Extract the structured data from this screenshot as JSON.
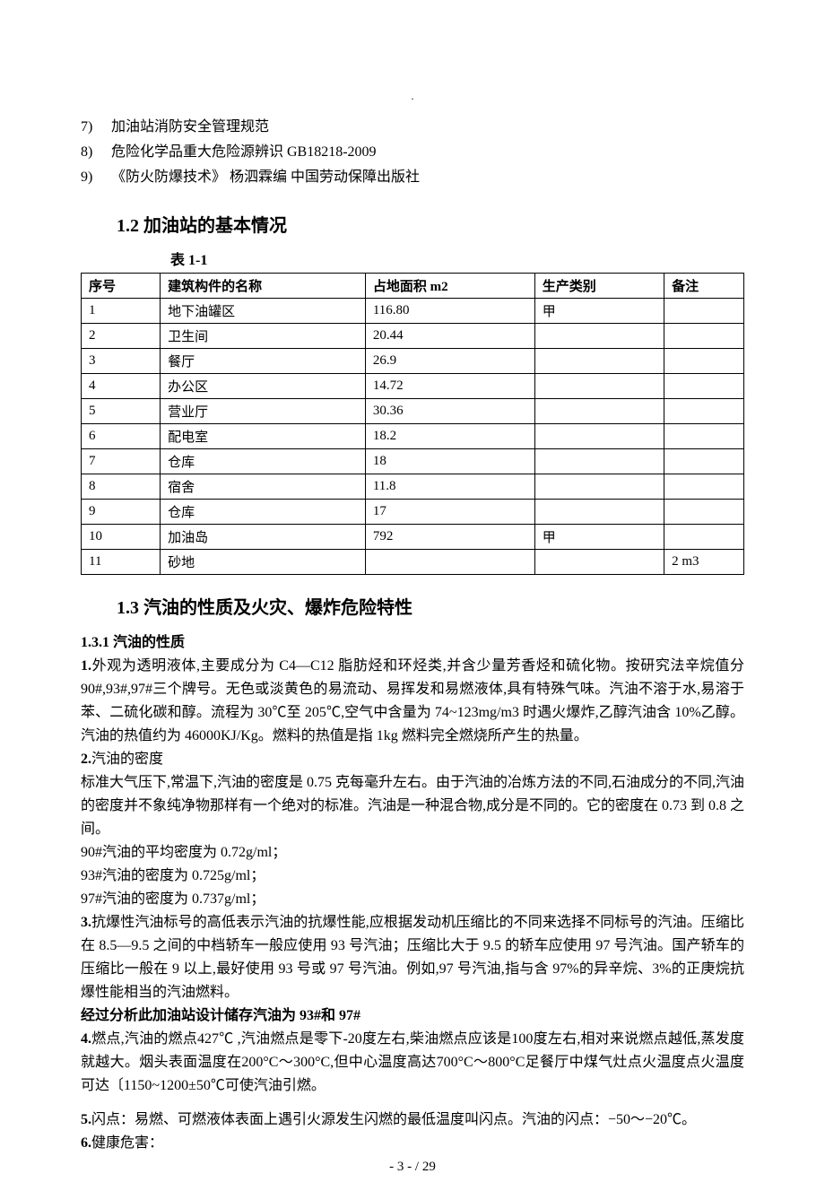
{
  "list": {
    "items": [
      {
        "num": "7)",
        "text": "加油站消防安全管理规范"
      },
      {
        "num": "8)",
        "text": "危险化学品重大危险源辨识 GB18218-2009"
      },
      {
        "num": "9)",
        "text": "《防火防爆技术》 杨泗霖编 中国劳动保障出版社"
      }
    ]
  },
  "heading_1_2": "1.2  加油站的基本情况",
  "table": {
    "label": "表 1-1",
    "columns": [
      "序号",
      "建筑构件的名称",
      "占地面积 m2",
      "生产类别",
      "备注"
    ],
    "rows": [
      [
        "1",
        "地下油罐区",
        "116.80",
        "甲",
        ""
      ],
      [
        "2",
        "卫生间",
        "20.44",
        "",
        ""
      ],
      [
        "3",
        "餐厅",
        "26.9",
        "",
        ""
      ],
      [
        "4",
        "办公区",
        "14.72",
        "",
        ""
      ],
      [
        "5",
        "营业厅",
        "30.36",
        "",
        ""
      ],
      [
        "6",
        "配电室",
        "18.2",
        "",
        ""
      ],
      [
        "7",
        "仓库",
        "18",
        "",
        ""
      ],
      [
        "8",
        "宿舍",
        "11.8",
        "",
        ""
      ],
      [
        "9",
        "仓库",
        "17",
        "",
        ""
      ],
      [
        "10",
        "加油岛",
        "792",
        "甲",
        ""
      ],
      [
        "11",
        "砂地",
        "",
        "",
        "2 m3"
      ]
    ]
  },
  "heading_1_3": "1.3  汽油的性质及火灾、爆炸危险特性",
  "sub_1_3_1": "1.3.1 汽油的性质",
  "paragraphs": {
    "p1_lead": "1.",
    "p1": "外观为透明液体,主要成分为 C4—C12 脂肪烃和环烃类,并含少量芳香烃和硫化物。按研究法辛烷值分 90#,93#,97#三个牌号。无色或淡黄色的易流动、易挥发和易燃液体,具有特殊气味。汽油不溶于水,易溶于苯、二硫化碳和醇。流程为 30℃至 205℃,空气中含量为 74~123mg/m3 时遇火爆炸,乙醇汽油含 10%乙醇。汽油的热值约为 46000KJ/Kg。燃料的热值是指 1kg 燃料完全燃烧所产生的热量。",
    "p2_lead": "2.",
    "p2_title": "汽油的密度",
    "p2": "标准大气压下,常温下,汽油的密度是 0.75 克每毫升左右。由于汽油的冶炼方法的不同,石油成分的不同,汽油的密度并不象纯净物那样有一个绝对的标准。汽油是一种混合物,成分是不同的。它的密度在 0.73 到 0.8 之间。",
    "p2_line1": "90#汽油的平均密度为 0.72g/ml；",
    "p2_line2": "93#汽油的密度为 0.725g/ml；",
    "p2_line3": "97#汽油的密度为 0.737g/ml；",
    "p3_lead": "3.",
    "p3": "抗爆性汽油标号的高低表示汽油的抗爆性能,应根据发动机压缩比的不同来选择不同标号的汽油。压缩比在 8.5—9.5 之间的中档轿车一般应使用 93 号汽油；压缩比大于 9.5 的轿车应使用 97 号汽油。国产轿车的压缩比一般在 9 以上,最好使用 93 号或 97 号汽油。例如,97 号汽油,指与含 97%的异辛烷、3%的正庚烷抗爆性能相当的汽油燃料。",
    "p3_emph": "经过分析此加油站设计储存汽油为 93#和 97#",
    "p4_lead": "4.",
    "p4": "燃点,汽油的燃点427℃ ,汽油燃点是零下-20度左右,柴油燃点应该是100度左右,相对来说燃点越低,蒸发度就越大。烟头表面温度在200°C～300°C,但中心温度高达700°C～800°C足餐厅中煤气灶点火温度点火温度可达〔1150~1200±50℃可使汽油引燃。",
    "p5_lead": "5.",
    "p5": "闪点：易燃、可燃液体表面上遇引火源发生闪燃的最低温度叫闪点。汽油的闪点：−50～−20℃。",
    "p6_lead": "6.",
    "p6": "健康危害："
  },
  "page_number": "- 3 -  / 29"
}
